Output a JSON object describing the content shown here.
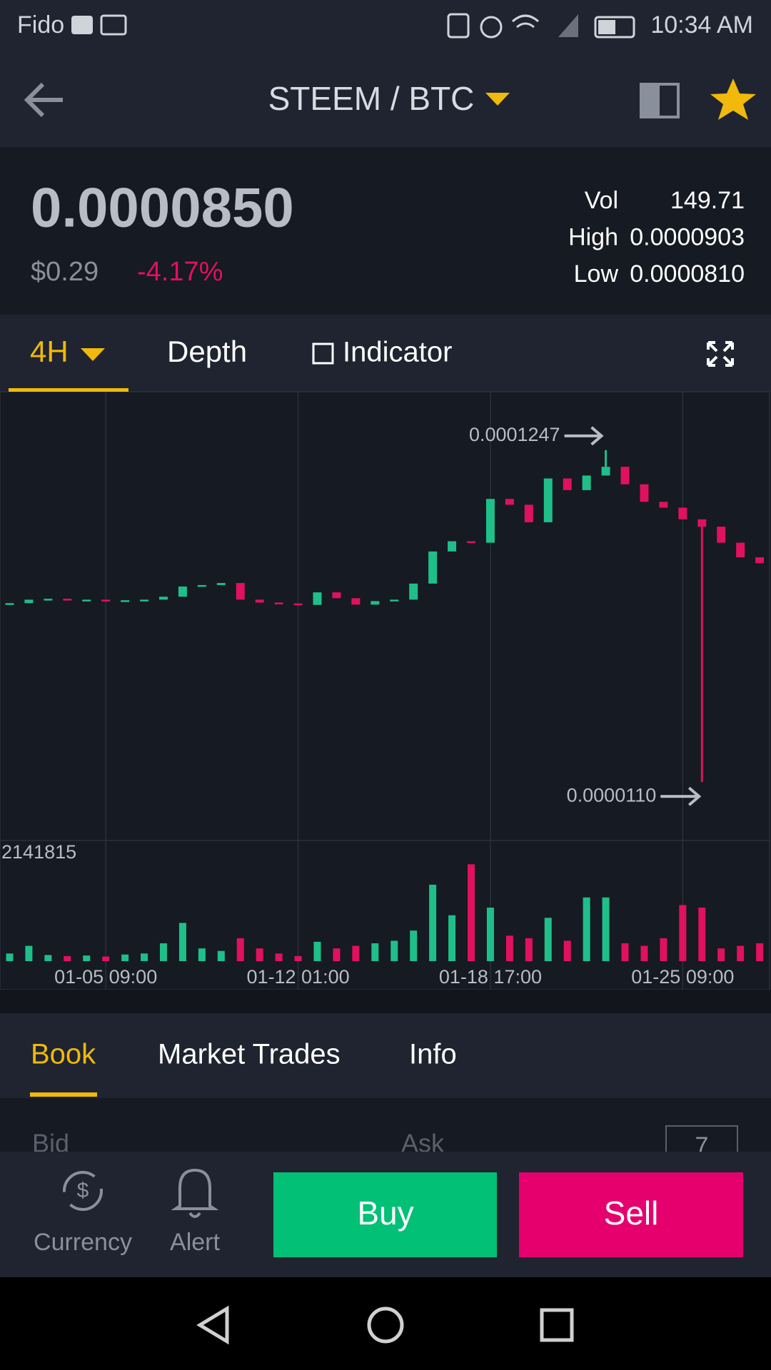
{
  "status_bar": {
    "carrier": "Fido",
    "time": "10:34 AM"
  },
  "header": {
    "pair": "STEEM / BTC"
  },
  "ticker": {
    "price": "0.0000850",
    "fiat": "$0.29",
    "change": "-4.17%",
    "stats": [
      {
        "label": "Vol",
        "value": "149.71"
      },
      {
        "label": "High",
        "value": "0.0000903"
      },
      {
        "label": "Low",
        "value": "0.0000810"
      }
    ]
  },
  "chart_tabs": [
    "4H",
    "Depth",
    "Indicator"
  ],
  "chart": {
    "type": "candlestick",
    "close": [
      7.23e-05,
      7.35e-05,
      7.38e-05,
      7.35e-05,
      7.35e-05,
      7.33e-05,
      7.33e-05,
      7.35e-05,
      7.45e-05,
      7.8e-05,
      7.85e-05,
      7.92e-05,
      7.35e-05,
      7.25e-05,
      7.22e-05,
      7.17e-05,
      7.6e-05,
      7.4e-05,
      7.18e-05,
      7.3e-05,
      7.35e-05,
      7.9e-05,
      9e-05,
      9.35e-05,
      9.3e-05,
      0.000108,
      0.000106,
      0.0001,
      0.000115,
      0.000111,
      0.000116,
      0.000119,
      0.000113,
      0.000107,
      0.000105,
      0.000101,
      9.85e-05,
      9.3e-05,
      8.8e-05,
      8.6e-05
    ],
    "volume": [
      150000,
      300000,
      120000,
      100000,
      110000,
      90000,
      130000,
      150000,
      350000,
      750000,
      250000,
      200000,
      450000,
      250000,
      150000,
      100000,
      380000,
      250000,
      300000,
      350000,
      400000,
      600000,
      1500000,
      900000,
      1900000,
      1050000,
      500000,
      450000,
      850000,
      400000,
      1250000,
      1250000,
      350000,
      300000,
      450000,
      1100000,
      1050000,
      250000,
      300000,
      350000
    ],
    "dates": [
      null,
      null,
      null,
      null,
      null,
      "01-05 09:00",
      null,
      null,
      null,
      null,
      null,
      null,
      null,
      null,
      null,
      "01-12 01:00",
      null,
      null,
      null,
      null,
      null,
      null,
      null,
      null,
      null,
      "01-18 17:00",
      null,
      null,
      null,
      null,
      null,
      null,
      null,
      null,
      null,
      "01-25 09:00",
      null,
      null,
      null,
      null
    ],
    "ylim": [
      -9e-06,
      0.0001447
    ],
    "high": 0.0001247,
    "low": {
      "value": 1.1e-05,
      "label": "0.0000110"
    },
    "volume_top": 2141815,
    "colors": {
      "up": "#1fbf8a",
      "down": "#e0115f"
    }
  },
  "book": {
    "tabs": [
      "Book",
      "Market Trades",
      "Info"
    ],
    "columns": [
      "Bid",
      "Ask"
    ],
    "depth": "7"
  },
  "actions": {
    "currency": "Currency",
    "alert": "Alert",
    "buy": "Buy",
    "sell": "Sell"
  }
}
